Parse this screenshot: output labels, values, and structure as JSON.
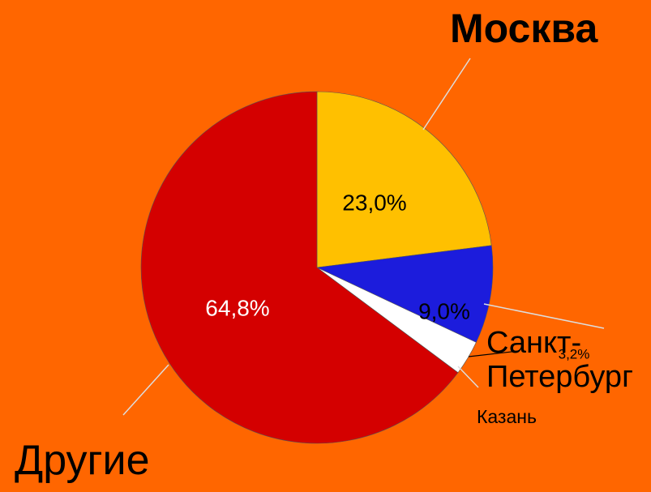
{
  "chart_data": {
    "type": "pie",
    "categories": [
      "Москва",
      "Санкт-Петербург",
      "Казань",
      "Другие"
    ],
    "values": [
      23.0,
      9.0,
      3.2,
      64.8
    ],
    "value_labels": [
      "23,0%",
      "9,0%",
      "3,2%",
      "64,8%"
    ],
    "colors": [
      "#ffc000",
      "#1c1cdc",
      "#ffffff",
      "#d40000"
    ]
  }
}
